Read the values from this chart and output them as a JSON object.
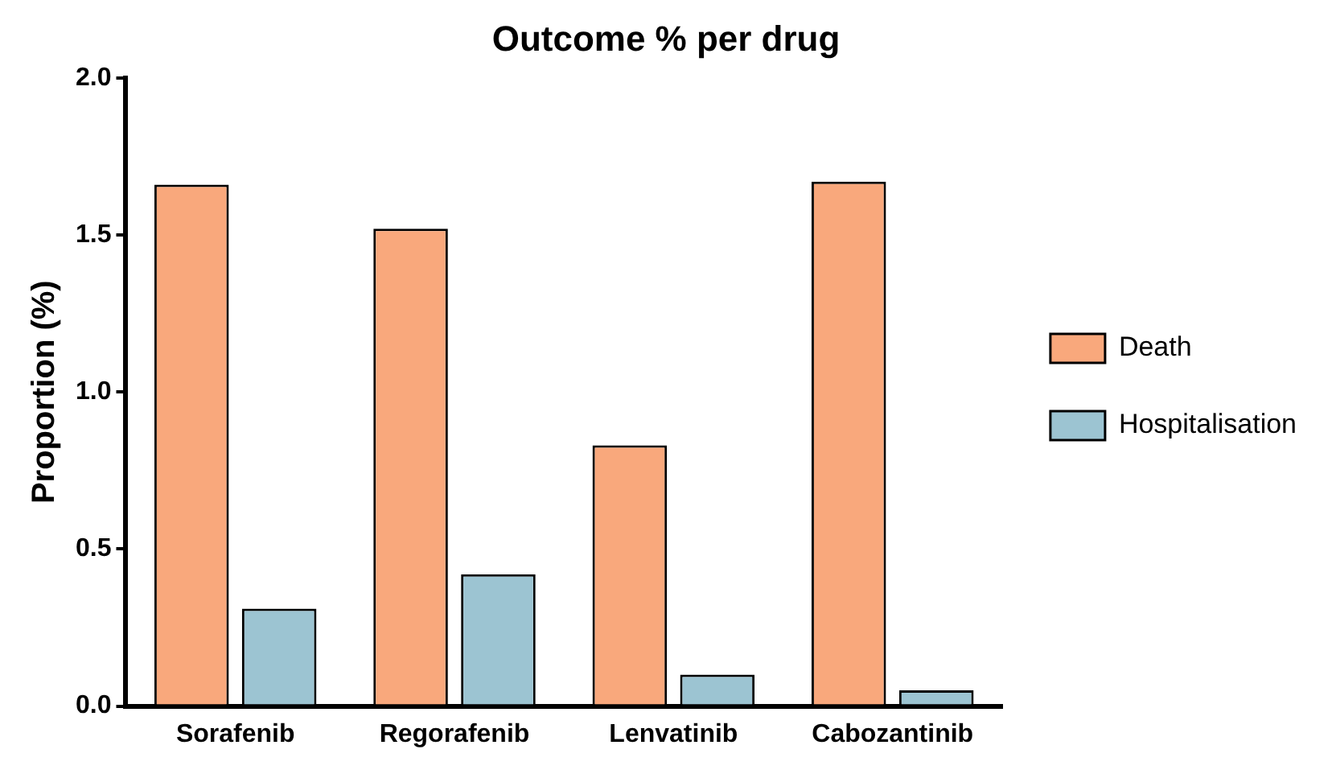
{
  "chart_data": {
    "type": "bar",
    "title": "Outcome % per drug",
    "ylabel": "Proportion (%)",
    "categories": [
      "Sorafenib",
      "Regorafenib",
      "Lenvatinib",
      "Cabozantinib"
    ],
    "series": [
      {
        "name": "Death",
        "color": "#f9a87c",
        "values": [
          1.66,
          1.52,
          0.83,
          1.67
        ]
      },
      {
        "name": "Hospitalisation",
        "color": "#9cc4d2",
        "values": [
          0.31,
          0.42,
          0.1,
          0.05
        ]
      }
    ],
    "ylim": [
      0,
      2
    ],
    "yticks": [
      {
        "value": 0,
        "label": "0.0"
      },
      {
        "value": 0.5,
        "label": "0.5"
      },
      {
        "value": 1,
        "label": "1.0"
      },
      {
        "value": 1.5,
        "label": "1.5"
      },
      {
        "value": 2,
        "label": "2.0"
      }
    ],
    "grid": false,
    "legend": "right"
  }
}
